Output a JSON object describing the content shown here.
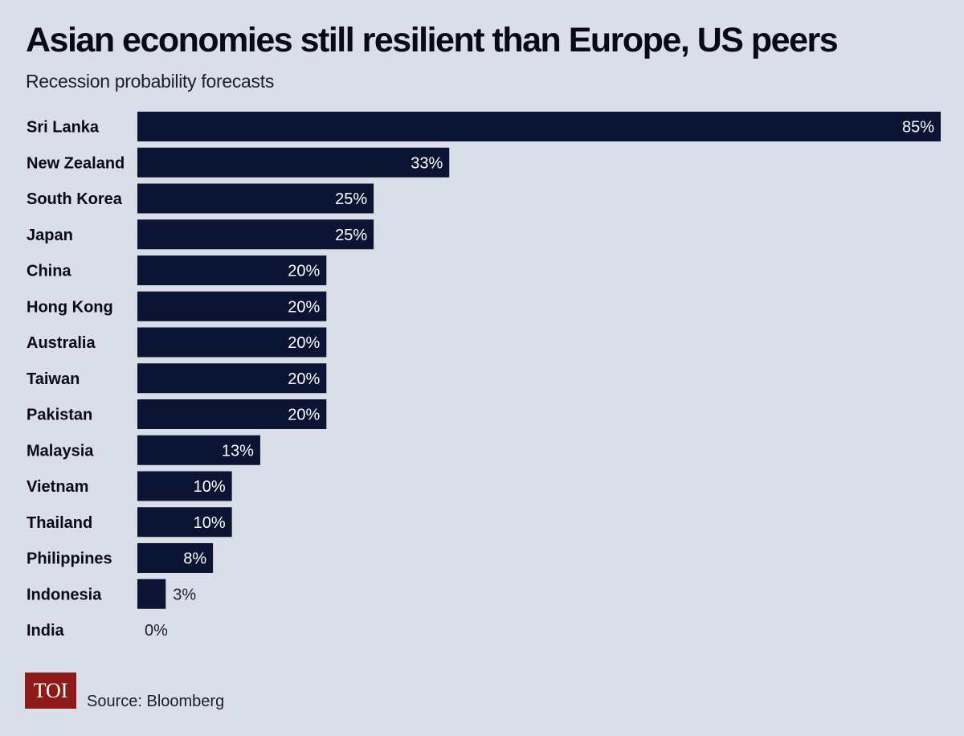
{
  "title": "Asian economies still resilient than Europe, US peers",
  "subtitle": "Recession probability forecasts",
  "source": "Source: Bloomberg",
  "logo_text": "TOI",
  "colors": {
    "background": "#d9dee8",
    "bar": "#0b1432",
    "logo": "#8f1a1a"
  },
  "chart_data": {
    "type": "bar",
    "orientation": "horizontal",
    "title": "Asian economies still resilient than Europe, US peers",
    "subtitle": "Recession probability forecasts",
    "categories": [
      "Sri Lanka",
      "New Zealand",
      "South Korea",
      "Japan",
      "China",
      "Hong Kong",
      "Australia",
      "Taiwan",
      "Pakistan",
      "Malaysia",
      "Vietnam",
      "Thailand",
      "Philippines",
      "Indonesia",
      "India"
    ],
    "values": [
      85,
      33,
      25,
      25,
      20,
      20,
      20,
      20,
      20,
      13,
      10,
      10,
      8,
      3,
      0
    ],
    "value_labels": [
      "85%",
      "33%",
      "25%",
      "25%",
      "20%",
      "20%",
      "20%",
      "20%",
      "20%",
      "13%",
      "10%",
      "10%",
      "8%",
      "3%",
      "0%"
    ],
    "unit": "%",
    "xlim": [
      0,
      85
    ],
    "grid": false,
    "legend": "none"
  }
}
